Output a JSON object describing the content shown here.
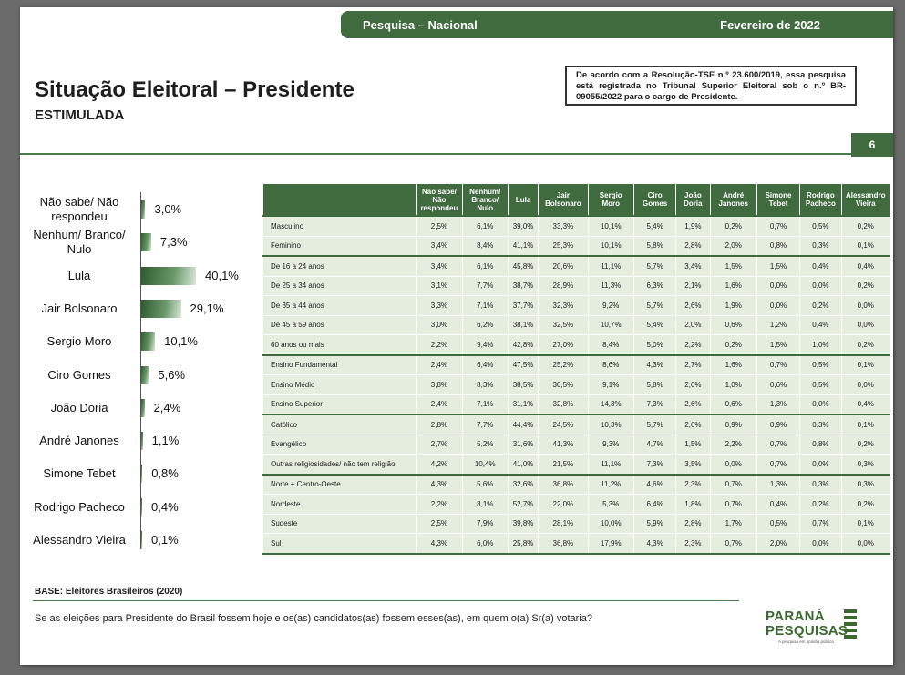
{
  "header": {
    "survey": "Pesquisa – Nacional",
    "date": "Fevereiro de 2022",
    "title": "Situação Eleitoral – Presidente",
    "subtitle": "ESTIMULADA",
    "notice": "De acordo com a Resolução-TSE n.º 23.600/2019, essa pesquisa está registrada no Tribunal Superior Eleitoral sob o n.º BR-09055/2022 para o cargo de Presidente.",
    "page_number": "6"
  },
  "chart_data": {
    "type": "bar",
    "orientation": "horizontal",
    "categories": [
      "Não sabe/ Não respondeu",
      "Nenhum/ Branco/ Nulo",
      "Lula",
      "Jair Bolsonaro",
      "Sergio Moro",
      "Ciro Gomes",
      "João Doria",
      "André Janones",
      "Simone Tebet",
      "Rodrigo Pacheco",
      "Alessandro Vieira"
    ],
    "values": [
      3.0,
      7.3,
      40.1,
      29.1,
      10.1,
      5.6,
      2.4,
      1.1,
      0.8,
      0.4,
      0.1
    ],
    "value_labels": [
      "3,0%",
      "7,3%",
      "40,1%",
      "29,1%",
      "10,1%",
      "5,6%",
      "2,4%",
      "1,1%",
      "0,8%",
      "0,4%",
      "0,1%"
    ],
    "unit": "%"
  },
  "table": {
    "headers": [
      "",
      "Não sabe/ Não respondeu",
      "Nenhum/ Branco/ Nulo",
      "Lula",
      "Jair Bolsonaro",
      "Sergio Moro",
      "Ciro Gomes",
      "João Doria",
      "André Janones",
      "Simone Tebet",
      "Rodrigo Pacheco",
      "Alessandro Vieira"
    ],
    "rows": [
      [
        "Masculino",
        "2,5%",
        "6,1%",
        "39,0%",
        "33,3%",
        "10,1%",
        "5,4%",
        "1,9%",
        "0,2%",
        "0,7%",
        "0,5%",
        "0,2%"
      ],
      [
        "Feminino",
        "3,4%",
        "8,4%",
        "41,1%",
        "25,3%",
        "10,1%",
        "5,8%",
        "2,8%",
        "2,0%",
        "0,8%",
        "0,3%",
        "0,1%"
      ],
      [
        "De 16 a 24 anos",
        "3,4%",
        "6,1%",
        "45,8%",
        "20,6%",
        "11,1%",
        "5,7%",
        "3,4%",
        "1,5%",
        "1,5%",
        "0,4%",
        "0,4%"
      ],
      [
        "De 25 a 34 anos",
        "3,1%",
        "7,7%",
        "38,7%",
        "28,9%",
        "11,3%",
        "6,3%",
        "2,1%",
        "1,6%",
        "0,0%",
        "0,0%",
        "0,2%"
      ],
      [
        "De 35 a 44 anos",
        "3,3%",
        "7,1%",
        "37,7%",
        "32,3%",
        "9,2%",
        "5,7%",
        "2,6%",
        "1,9%",
        "0,0%",
        "0,2%",
        "0,0%"
      ],
      [
        "De 45 a 59 anos",
        "3,0%",
        "6,2%",
        "38,1%",
        "32,5%",
        "10,7%",
        "5,4%",
        "2,0%",
        "0,6%",
        "1,2%",
        "0,4%",
        "0,0%"
      ],
      [
        "60 anos ou mais",
        "2,2%",
        "9,4%",
        "42,8%",
        "27,0%",
        "8,4%",
        "5,0%",
        "2,2%",
        "0,2%",
        "1,5%",
        "1,0%",
        "0,2%"
      ],
      [
        "Ensino Fundamental",
        "2,4%",
        "6,4%",
        "47,5%",
        "25,2%",
        "8,6%",
        "4,3%",
        "2,7%",
        "1,6%",
        "0,7%",
        "0,5%",
        "0,1%"
      ],
      [
        "Ensino Médio",
        "3,8%",
        "8,3%",
        "38,5%",
        "30,5%",
        "9,1%",
        "5,8%",
        "2,0%",
        "1,0%",
        "0,6%",
        "0,5%",
        "0,0%"
      ],
      [
        "Ensino Superior",
        "2,4%",
        "7,1%",
        "31,1%",
        "32,8%",
        "14,3%",
        "7,3%",
        "2,6%",
        "0,6%",
        "1,3%",
        "0,0%",
        "0,4%"
      ],
      [
        "Católico",
        "2,8%",
        "7,7%",
        "44,4%",
        "24,5%",
        "10,3%",
        "5,7%",
        "2,6%",
        "0,9%",
        "0,9%",
        "0,3%",
        "0,1%"
      ],
      [
        "Evangélico",
        "2,7%",
        "5,2%",
        "31,6%",
        "41,3%",
        "9,3%",
        "4,7%",
        "1,5%",
        "2,2%",
        "0,7%",
        "0,8%",
        "0,2%"
      ],
      [
        "Outras religiosidades/ não tem religião",
        "4,2%",
        "10,4%",
        "41,0%",
        "21,5%",
        "11,1%",
        "7,3%",
        "3,5%",
        "0,0%",
        "0,7%",
        "0,0%",
        "0,3%"
      ],
      [
        "Norte + Centro-Oeste",
        "4,3%",
        "5,6%",
        "32,6%",
        "36,8%",
        "11,2%",
        "4,6%",
        "2,3%",
        "0,7%",
        "1,3%",
        "0,3%",
        "0,3%"
      ],
      [
        "Nordeste",
        "2,2%",
        "8,1%",
        "52,7%",
        "22,0%",
        "5,3%",
        "6,4%",
        "1,8%",
        "0,7%",
        "0,4%",
        "0,2%",
        "0,2%"
      ],
      [
        "Sudeste",
        "2,5%",
        "7,9%",
        "39,8%",
        "28,1%",
        "10,0%",
        "5,9%",
        "2,8%",
        "1,7%",
        "0,5%",
        "0,7%",
        "0,1%"
      ],
      [
        "Sul",
        "4,3%",
        "6,0%",
        "25,8%",
        "36,8%",
        "17,9%",
        "4,3%",
        "2,3%",
        "0,7%",
        "2,0%",
        "0,0%",
        "0,0%"
      ]
    ]
  },
  "footer": {
    "base": "BASE: Eleitores Brasileiros (2020)",
    "question": "Se as eleições para Presidente do Brasil fossem hoje e os(as) candidatos(as) fossem esses(as), em quem o(a) Sr(a) votaria?",
    "logo_line1": "PARANÁ",
    "logo_line2": "PESQUISAS",
    "logo_tagline": "A pesquisa em opinião pública"
  },
  "colors": {
    "brand_green": "#3f6b3f",
    "cell_bg": "#e4edde"
  }
}
